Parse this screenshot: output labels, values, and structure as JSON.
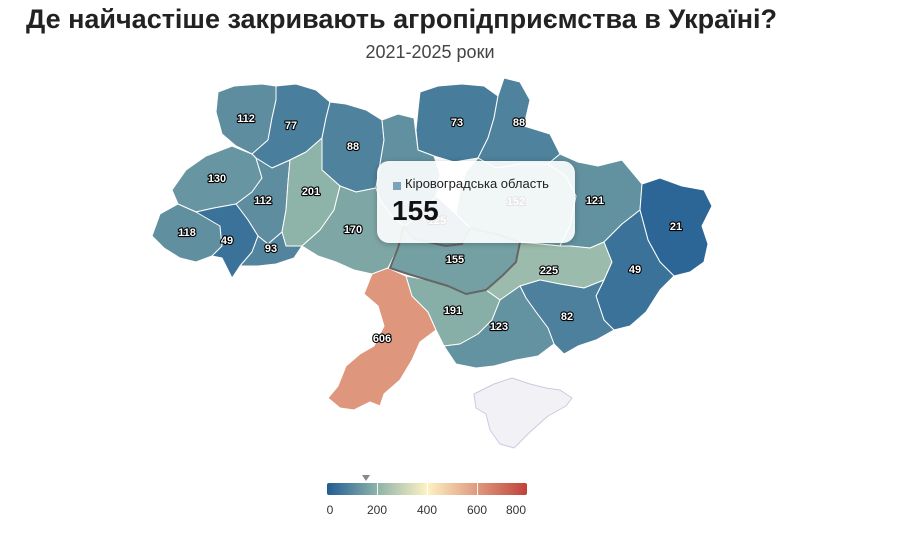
{
  "title": "Де найчастіше закривають агропідприємства в Україні?",
  "subtitle": "2021-2025 роки",
  "colors": {
    "low": "#1f5d94",
    "mid_low": "#8db3a8",
    "mid": "#fdf2c4",
    "high": "#c0413a",
    "no_data": "#f2f2f6",
    "border": "#ffffff",
    "highlight_border": "#666666"
  },
  "legend": {
    "min": 0,
    "max": 800,
    "ticks": [
      "0",
      "200",
      "400",
      "600",
      "800"
    ],
    "marker_value": 155
  },
  "tooltip": {
    "region": "Кіровоградська область",
    "value": "155",
    "swatch_color": "#7aa3b8"
  },
  "regions": [
    {
      "name": "Волинська",
      "value": "112"
    },
    {
      "name": "Рівненська",
      "value": "77"
    },
    {
      "name": "Житомирська",
      "value": "88"
    },
    {
      "name": "Київ",
      "value": ""
    },
    {
      "name": "Чернігівська",
      "value": "73"
    },
    {
      "name": "Сумська",
      "value": "88"
    },
    {
      "name": "Львівська",
      "value": "130"
    },
    {
      "name": "Тернопільська",
      "value": "112"
    },
    {
      "name": "Хмельницька",
      "value": "201"
    },
    {
      "name": "Київська",
      "value": ""
    },
    {
      "name": "Полтавська",
      "value": "152"
    },
    {
      "name": "Харківська",
      "value": "121"
    },
    {
      "name": "Луганська",
      "value": "21"
    },
    {
      "name": "Закарпатська",
      "value": "118"
    },
    {
      "name": "Івано-Франківська",
      "value": "49"
    },
    {
      "name": "Чернівецька",
      "value": "93"
    },
    {
      "name": "Вінницька",
      "value": "170"
    },
    {
      "name": "Черкаська",
      "value": "125"
    },
    {
      "name": "Кіровоградська",
      "value": "155"
    },
    {
      "name": "Дніпропетровська",
      "value": "225"
    },
    {
      "name": "Донецька",
      "value": "49"
    },
    {
      "name": "Одеська",
      "value": "606"
    },
    {
      "name": "Миколаївська",
      "value": "191"
    },
    {
      "name": "Запорізька",
      "value": "82"
    },
    {
      "name": "Херсонська",
      "value": "123"
    },
    {
      "name": "АР Крим",
      "value": ""
    }
  ]
}
